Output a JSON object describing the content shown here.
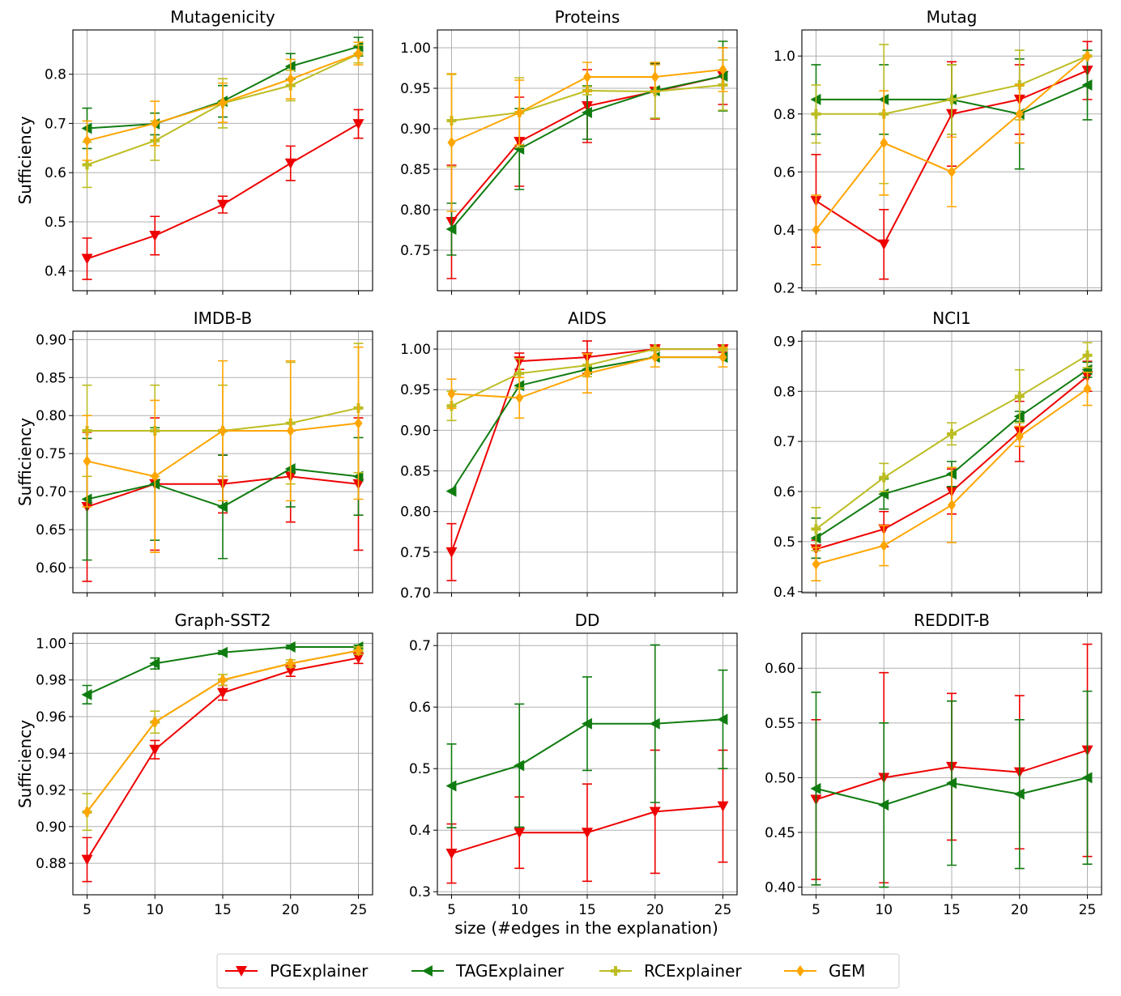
{
  "x_label": "size (#edges in the explanation)",
  "legend": [
    {
      "name": "PGExplainer",
      "color": "#ee0000",
      "marker": "triangle-down"
    },
    {
      "name": "TAGExplainer",
      "color": "#107c10",
      "marker": "triangle-left"
    },
    {
      "name": "RCExplainer",
      "color": "#bcbd22",
      "marker": "plus"
    },
    {
      "name": "GEM",
      "color": "#ffa500",
      "marker": "diamond"
    }
  ],
  "chart_data": [
    {
      "type": "line",
      "title": "Mutagenicity",
      "ylabel": "Sufficiency",
      "xlabel": "",
      "x": [
        5,
        10,
        15,
        20,
        25
      ],
      "ylim": [
        0.36,
        0.89
      ],
      "yticks": [
        0.4,
        0.5,
        0.6,
        0.7,
        0.8
      ],
      "ytick_labels": [
        "0.4",
        "0.5",
        "0.6",
        "0.7",
        "0.8"
      ],
      "xtick_labels": [
        "",
        "",
        "",
        "",
        ""
      ],
      "series": [
        {
          "name": "PGExplainer",
          "values": [
            0.425,
            0.472,
            0.535,
            0.619,
            0.699
          ],
          "errors": [
            0.042,
            0.039,
            0.017,
            0.035,
            0.029
          ]
        },
        {
          "name": "TAGExplainer",
          "values": [
            0.69,
            0.699,
            0.745,
            0.816,
            0.856
          ],
          "errors": [
            0.041,
            0.022,
            0.032,
            0.026,
            0.019
          ]
        },
        {
          "name": "RCExplainer",
          "values": [
            0.616,
            0.665,
            0.741,
            0.777,
            0.841
          ],
          "errors": [
            0.046,
            0.04,
            0.05,
            0.031,
            0.018
          ]
        },
        {
          "name": "GEM",
          "values": [
            0.665,
            0.7,
            0.742,
            0.79,
            0.842
          ],
          "errors": [
            0.04,
            0.045,
            0.04,
            0.04,
            0.023
          ]
        }
      ]
    },
    {
      "type": "line",
      "title": "Proteins",
      "ylabel": "",
      "xlabel": "",
      "x": [
        5,
        10,
        15,
        20,
        25
      ],
      "ylim": [
        0.7,
        1.022
      ],
      "yticks": [
        0.75,
        0.8,
        0.85,
        0.9,
        0.95,
        1.0
      ],
      "ytick_labels": [
        "0.75",
        "0.80",
        "0.85",
        "0.90",
        "0.95",
        "1.00"
      ],
      "xtick_labels": [
        "",
        "",
        "",
        "",
        ""
      ],
      "series": [
        {
          "name": "PGExplainer",
          "values": [
            0.785,
            0.884,
            0.928,
            0.946,
            0.965
          ],
          "errors": [
            0.07,
            0.055,
            0.045,
            0.034,
            0.035
          ]
        },
        {
          "name": "TAGExplainer",
          "values": [
            0.776,
            0.875,
            0.92,
            0.947,
            0.965
          ],
          "errors": [
            0.032,
            0.05,
            0.033,
            0.034,
            0.043
          ]
        },
        {
          "name": "RCExplainer",
          "values": [
            0.91,
            0.92,
            0.947,
            0.946,
            0.954
          ],
          "errors": [
            0.057,
            0.043,
            0.005,
            0.033,
            0.031
          ]
        },
        {
          "name": "GEM",
          "values": [
            0.883,
            0.92,
            0.964,
            0.964,
            0.973
          ],
          "errors": [
            0.085,
            0.04,
            0.018,
            0.018,
            0.027
          ]
        }
      ]
    },
    {
      "type": "line",
      "title": "Mutag",
      "ylabel": "",
      "xlabel": "",
      "x": [
        5,
        10,
        15,
        20,
        25
      ],
      "ylim": [
        0.19,
        1.09
      ],
      "yticks": [
        0.2,
        0.4,
        0.6,
        0.8,
        1.0
      ],
      "ytick_labels": [
        "0.2",
        "0.4",
        "0.6",
        "0.8",
        "1.0"
      ],
      "xtick_labels": [
        "",
        "",
        "",
        "",
        ""
      ],
      "series": [
        {
          "name": "PGExplainer",
          "values": [
            0.5,
            0.35,
            0.8,
            0.85,
            0.95
          ],
          "errors": [
            0.16,
            0.12,
            0.18,
            0.12,
            0.1
          ]
        },
        {
          "name": "TAGExplainer",
          "values": [
            0.85,
            0.85,
            0.85,
            0.8,
            0.9
          ],
          "errors": [
            0.12,
            0.12,
            0.12,
            0.19,
            0.12
          ]
        },
        {
          "name": "RCExplainer",
          "values": [
            0.8,
            0.8,
            0.85,
            0.9,
            1.0
          ],
          "errors": [
            0.1,
            0.24,
            0.12,
            0.12,
            0.0
          ]
        },
        {
          "name": "GEM",
          "values": [
            0.4,
            0.7,
            0.6,
            0.8,
            1.0
          ],
          "errors": [
            0.12,
            0.18,
            0.12,
            0.1,
            0.0
          ]
        }
      ]
    },
    {
      "type": "line",
      "title": "IMDB-B",
      "ylabel": "Sufficiency",
      "xlabel": "",
      "x": [
        5,
        10,
        15,
        20,
        25
      ],
      "ylim": [
        0.567,
        0.911
      ],
      "yticks": [
        0.6,
        0.65,
        0.7,
        0.75,
        0.8,
        0.85,
        0.9
      ],
      "ytick_labels": [
        "0.60",
        "0.65",
        "0.70",
        "0.75",
        "0.80",
        "0.85",
        "0.90"
      ],
      "xtick_labels": [
        "",
        "",
        "",
        "",
        ""
      ],
      "series": [
        {
          "name": "PGExplainer",
          "values": [
            0.68,
            0.71,
            0.71,
            0.72,
            0.71
          ],
          "errors": [
            0.098,
            0.087,
            0.038,
            0.06,
            0.087
          ]
        },
        {
          "name": "TAGExplainer",
          "values": [
            0.69,
            0.71,
            0.68,
            0.73,
            0.72
          ],
          "errors": [
            0.08,
            0.074,
            0.068,
            0.05,
            0.051
          ]
        },
        {
          "name": "RCExplainer",
          "values": [
            0.78,
            0.78,
            0.78,
            0.79,
            0.81
          ],
          "errors": [
            0.06,
            0.06,
            0.06,
            0.08,
            0.085
          ]
        },
        {
          "name": "GEM",
          "values": [
            0.74,
            0.72,
            0.78,
            0.78,
            0.79
          ],
          "errors": [
            0.06,
            0.1,
            0.092,
            0.092,
            0.1
          ]
        }
      ]
    },
    {
      "type": "line",
      "title": "AIDS",
      "ylabel": "",
      "xlabel": "",
      "x": [
        5,
        10,
        15,
        20,
        25
      ],
      "ylim": [
        0.7,
        1.022
      ],
      "yticks": [
        0.7,
        0.75,
        0.8,
        0.85,
        0.9,
        0.95,
        1.0
      ],
      "ytick_labels": [
        "0.70",
        "0.75",
        "0.80",
        "0.85",
        "0.90",
        "0.95",
        "1.00"
      ],
      "xtick_labels": [
        "",
        "",
        "",
        "",
        ""
      ],
      "series": [
        {
          "name": "PGExplainer",
          "values": [
            0.75,
            0.985,
            0.99,
            1.0,
            1.0
          ],
          "errors": [
            0.035,
            0.01,
            0.02,
            0.002,
            0.004
          ]
        },
        {
          "name": "TAGExplainer",
          "values": [
            0.825,
            0.955,
            0.975,
            0.99,
            0.99
          ],
          "errors": [
            0.0,
            0.0,
            0.0,
            0.0,
            0.0
          ]
        },
        {
          "name": "RCExplainer",
          "values": [
            0.93,
            0.97,
            0.98,
            1.0,
            1.0
          ],
          "errors": [
            0.018,
            0.018,
            0.014,
            0.002,
            0.002
          ]
        },
        {
          "name": "GEM",
          "values": [
            0.945,
            0.94,
            0.97,
            0.99,
            0.99
          ],
          "errors": [
            0.018,
            0.025,
            0.024,
            0.012,
            0.012
          ]
        }
      ]
    },
    {
      "type": "line",
      "title": "NCI1",
      "ylabel": "",
      "xlabel": "",
      "x": [
        5,
        10,
        15,
        20,
        25
      ],
      "ylim": [
        0.398,
        0.92
      ],
      "yticks": [
        0.4,
        0.5,
        0.6,
        0.7,
        0.8,
        0.9
      ],
      "ytick_labels": [
        "0.4",
        "0.5",
        "0.6",
        "0.7",
        "0.8",
        "0.9"
      ],
      "xtick_labels": [
        "",
        "",
        "",
        "",
        ""
      ],
      "series": [
        {
          "name": "PGExplainer",
          "values": [
            0.485,
            0.525,
            0.6,
            0.72,
            0.83
          ],
          "errors": [
            0.018,
            0.035,
            0.045,
            0.06,
            0.03
          ]
        },
        {
          "name": "TAGExplainer",
          "values": [
            0.507,
            0.595,
            0.635,
            0.75,
            0.843
          ],
          "errors": [
            0.04,
            0.03,
            0.025,
            0.01,
            0.015
          ]
        },
        {
          "name": "RCExplainer",
          "values": [
            0.525,
            0.628,
            0.715,
            0.79,
            0.872
          ],
          "errors": [
            0.043,
            0.028,
            0.022,
            0.053,
            0.025
          ]
        },
        {
          "name": "GEM",
          "values": [
            0.455,
            0.492,
            0.573,
            0.71,
            0.805
          ],
          "errors": [
            0.033,
            0.04,
            0.075,
            0.02,
            0.033
          ]
        }
      ]
    },
    {
      "type": "line",
      "title": "Graph-SST2",
      "ylabel": "Sufficiency",
      "xlabel": "",
      "x": [
        5,
        10,
        15,
        20,
        25
      ],
      "ylim": [
        0.8628,
        1.0055
      ],
      "yticks": [
        0.88,
        0.9,
        0.92,
        0.94,
        0.96,
        0.98,
        1.0
      ],
      "ytick_labels": [
        "0.88",
        "0.90",
        "0.92",
        "0.94",
        "0.96",
        "0.98",
        "1.00"
      ],
      "xtick_labels": [
        "5",
        "10",
        "15",
        "20",
        "25"
      ],
      "series": [
        {
          "name": "PGExplainer",
          "values": [
            0.882,
            0.942,
            0.973,
            0.985,
            0.992
          ],
          "errors": [
            0.012,
            0.005,
            0.004,
            0.003,
            0.003
          ]
        },
        {
          "name": "TAGExplainer",
          "values": [
            0.972,
            0.989,
            0.995,
            0.998,
            0.998
          ],
          "errors": [
            0.005,
            0.003,
            0.001,
            0.001,
            0.001
          ]
        },
        {
          "name": "RCExplainer",
          "values": [
            0.908,
            0.957,
            0.98,
            0.989,
            0.996
          ],
          "errors": [
            0.01,
            0.006,
            0.003,
            0.002,
            0.002
          ]
        },
        {
          "name": "GEM",
          "values": [
            0.908,
            0.957,
            0.98,
            0.989,
            0.996
          ],
          "errors": [
            0.0,
            0.0,
            0.0,
            0.0,
            0.0
          ]
        }
      ]
    },
    {
      "type": "line",
      "title": "DD",
      "ylabel": "",
      "xlabel": "size (#edges in the explanation)",
      "x": [
        5,
        10,
        15,
        20,
        25
      ],
      "ylim": [
        0.295,
        0.72
      ],
      "yticks": [
        0.3,
        0.4,
        0.5,
        0.6,
        0.7
      ],
      "ytick_labels": [
        "0.3",
        "0.4",
        "0.5",
        "0.6",
        "0.7"
      ],
      "xtick_labels": [
        "5",
        "10",
        "15",
        "20",
        "25"
      ],
      "series": [
        {
          "name": "PGExplainer",
          "values": [
            0.362,
            0.396,
            0.396,
            0.43,
            0.439
          ],
          "errors": [
            0.048,
            0.058,
            0.079,
            0.1,
            0.091
          ]
        },
        {
          "name": "TAGExplainer",
          "values": [
            0.472,
            0.505,
            0.573,
            0.573,
            0.58
          ],
          "errors": [
            0.068,
            0.1,
            0.076,
            0.128,
            0.08
          ]
        }
      ]
    },
    {
      "type": "line",
      "title": "REDDIT-B",
      "ylabel": "",
      "xlabel": "",
      "x": [
        5,
        10,
        15,
        20,
        25
      ],
      "ylim": [
        0.393,
        0.632
      ],
      "yticks": [
        0.4,
        0.45,
        0.5,
        0.55,
        0.6
      ],
      "ytick_labels": [
        "0.40",
        "0.45",
        "0.50",
        "0.55",
        "0.60"
      ],
      "xtick_labels": [
        "5",
        "10",
        "15",
        "20",
        "25"
      ],
      "series": [
        {
          "name": "PGExplainer",
          "values": [
            0.48,
            0.5,
            0.51,
            0.505,
            0.525
          ],
          "errors": [
            0.073,
            0.096,
            0.067,
            0.07,
            0.097
          ]
        },
        {
          "name": "TAGExplainer",
          "values": [
            0.49,
            0.475,
            0.495,
            0.485,
            0.5
          ],
          "errors": [
            0.088,
            0.075,
            0.075,
            0.068,
            0.079
          ]
        }
      ]
    }
  ]
}
